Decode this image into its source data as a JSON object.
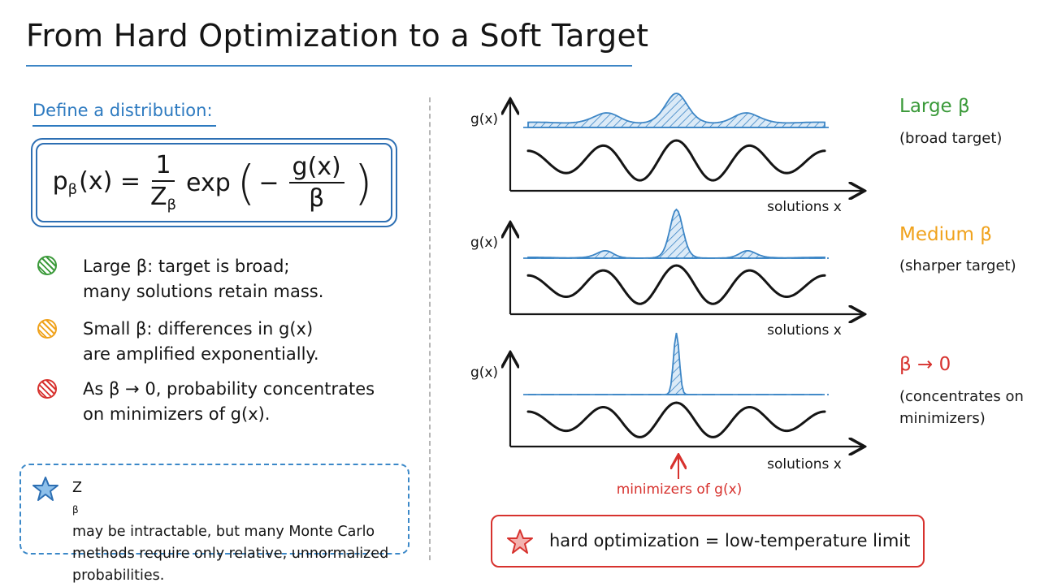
{
  "title": "From Hard Optimization to a Soft Target",
  "define_label": "Define a distribution:",
  "formula": {
    "lhs_base": "p",
    "lhs_sub": "β",
    "lhs_arg": "(x) =",
    "frac1_num": "1",
    "frac1_den_base": "Z",
    "frac1_den_sub": "β",
    "exp": "exp",
    "minus": "−",
    "frac2_num": "g(x)",
    "frac2_den": "β"
  },
  "bullets": [
    {
      "color": "#3b9a3a",
      "lines": [
        "Large β:  target is broad;",
        "many solutions retain mass."
      ]
    },
    {
      "color": "#f0a21c",
      "lines": [
        "Small β:  differences in g(x)",
        "are amplified exponentially."
      ]
    },
    {
      "color": "#d7322e",
      "lines": [
        "As β → 0,  probability concentrates",
        "on minimizers of g(x)."
      ]
    }
  ],
  "note": {
    "icon": "star-icon",
    "z_base": "Z",
    "z_sub": "β",
    "line1_rest": " may be intractable, but many Monte Carlo",
    "line2": "methods require only relative, unnormalized",
    "line3": "probabilities."
  },
  "panels": [
    {
      "ylabel": "g(x)",
      "xlabel": "solutions x",
      "label": "Large β",
      "label_color": "#3b9a3a",
      "sublabel_lines": [
        "(broad target)"
      ],
      "beta": 0.5
    },
    {
      "ylabel": "g(x)",
      "xlabel": "solutions x",
      "label": "Medium β",
      "label_color": "#f0a21c",
      "sublabel_lines": [
        "(sharper target)"
      ],
      "beta": 0.15
    },
    {
      "ylabel": "g(x)",
      "xlabel": "solutions x",
      "label": "β → 0",
      "label_color": "#d7322e",
      "sublabel_lines": [
        "(concentrates on",
        "minimizers)"
      ],
      "beta": 0.03
    }
  ],
  "minimizer_annotation": "minimizers of g(x)",
  "bottom_statement": "hard optimization = low-temperature limit",
  "colors": {
    "accent_blue": "#2d7ac0",
    "curve_blue": "#3d86c6",
    "red": "#d7322e",
    "green": "#3b9a3a",
    "orange": "#f0a21c"
  }
}
